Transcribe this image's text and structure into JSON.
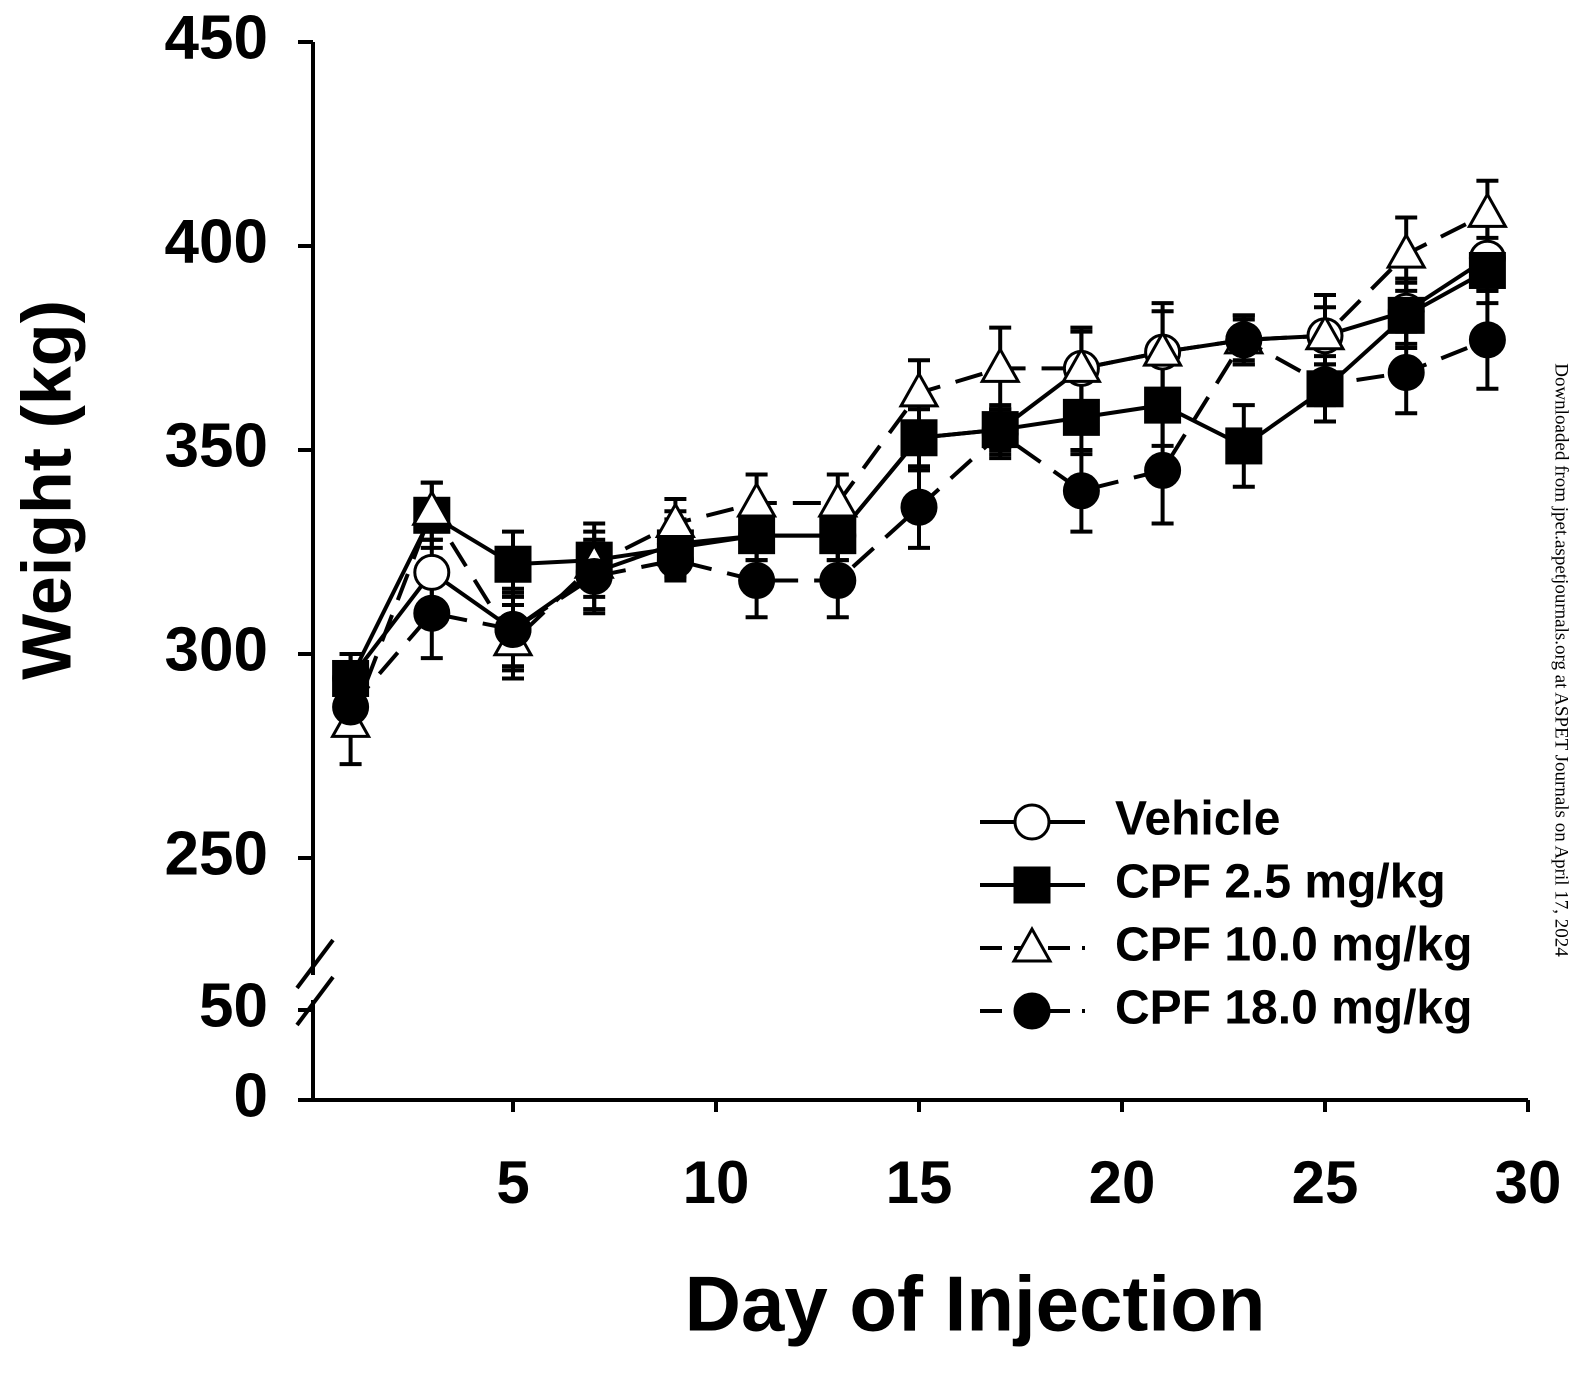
{
  "chart_data": {
    "type": "line",
    "x_title": "Day of Injection",
    "y_title": "Weight (kg)",
    "note": "Downloaded from jpet.aspetjournals.org at ASPET Journals on April 17, 2024",
    "x": [
      1,
      3,
      5,
      7,
      9,
      11,
      13,
      15,
      17,
      19,
      21,
      23,
      25,
      27,
      29
    ],
    "xlim": [
      0,
      30
    ],
    "xticks": [
      5,
      10,
      15,
      20,
      25,
      30
    ],
    "ylim": [
      0,
      450
    ],
    "y_break": [
      50,
      250
    ],
    "yticks": [
      0,
      50,
      250,
      300,
      350,
      400,
      450
    ],
    "legend": "lower right",
    "series": [
      {
        "name": "Vehicle",
        "color": "#000000",
        "marker": "circle-open",
        "dashed": false,
        "values": [
          294,
          320,
          306,
          320,
          327,
          329,
          329,
          353,
          355,
          370,
          374,
          377,
          378,
          384,
          397
        ],
        "errors": [
          6,
          8,
          10,
          10,
          8,
          6,
          6,
          7,
          5,
          10,
          10,
          5,
          10,
          8,
          8
        ]
      },
      {
        "name": "CPF 2.5 mg/kg",
        "color": "#000000",
        "marker": "square",
        "dashed": false,
        "values": [
          294,
          334,
          322,
          323,
          326,
          329,
          329,
          353,
          355,
          358,
          361,
          351,
          365,
          383,
          394
        ],
        "errors": [
          6,
          8,
          8,
          9,
          7,
          6,
          6,
          8,
          6,
          9,
          10,
          10,
          8,
          8,
          8
        ]
      },
      {
        "name": "CPF 10.0 mg/kg",
        "color": "#000000",
        "marker": "triangle-open",
        "dashed": true,
        "values": [
          283,
          335,
          303,
          322,
          332,
          337,
          337,
          364,
          370,
          370,
          374,
          377,
          378,
          398,
          408
        ],
        "errors": [
          10,
          7,
          9,
          6,
          6,
          7,
          7,
          8,
          10,
          9,
          12,
          6,
          7,
          9,
          8
        ]
      },
      {
        "name": "CPF 18.0 mg/kg",
        "color": "#000000",
        "marker": "circle",
        "dashed": true,
        "values": [
          287,
          310,
          306,
          319,
          323,
          318,
          318,
          336,
          354,
          340,
          345,
          377,
          366,
          369,
          377
        ],
        "errors": [
          6,
          11,
          9,
          8,
          5,
          9,
          9,
          10,
          6,
          10,
          13,
          6,
          5,
          10,
          12
        ]
      }
    ]
  }
}
